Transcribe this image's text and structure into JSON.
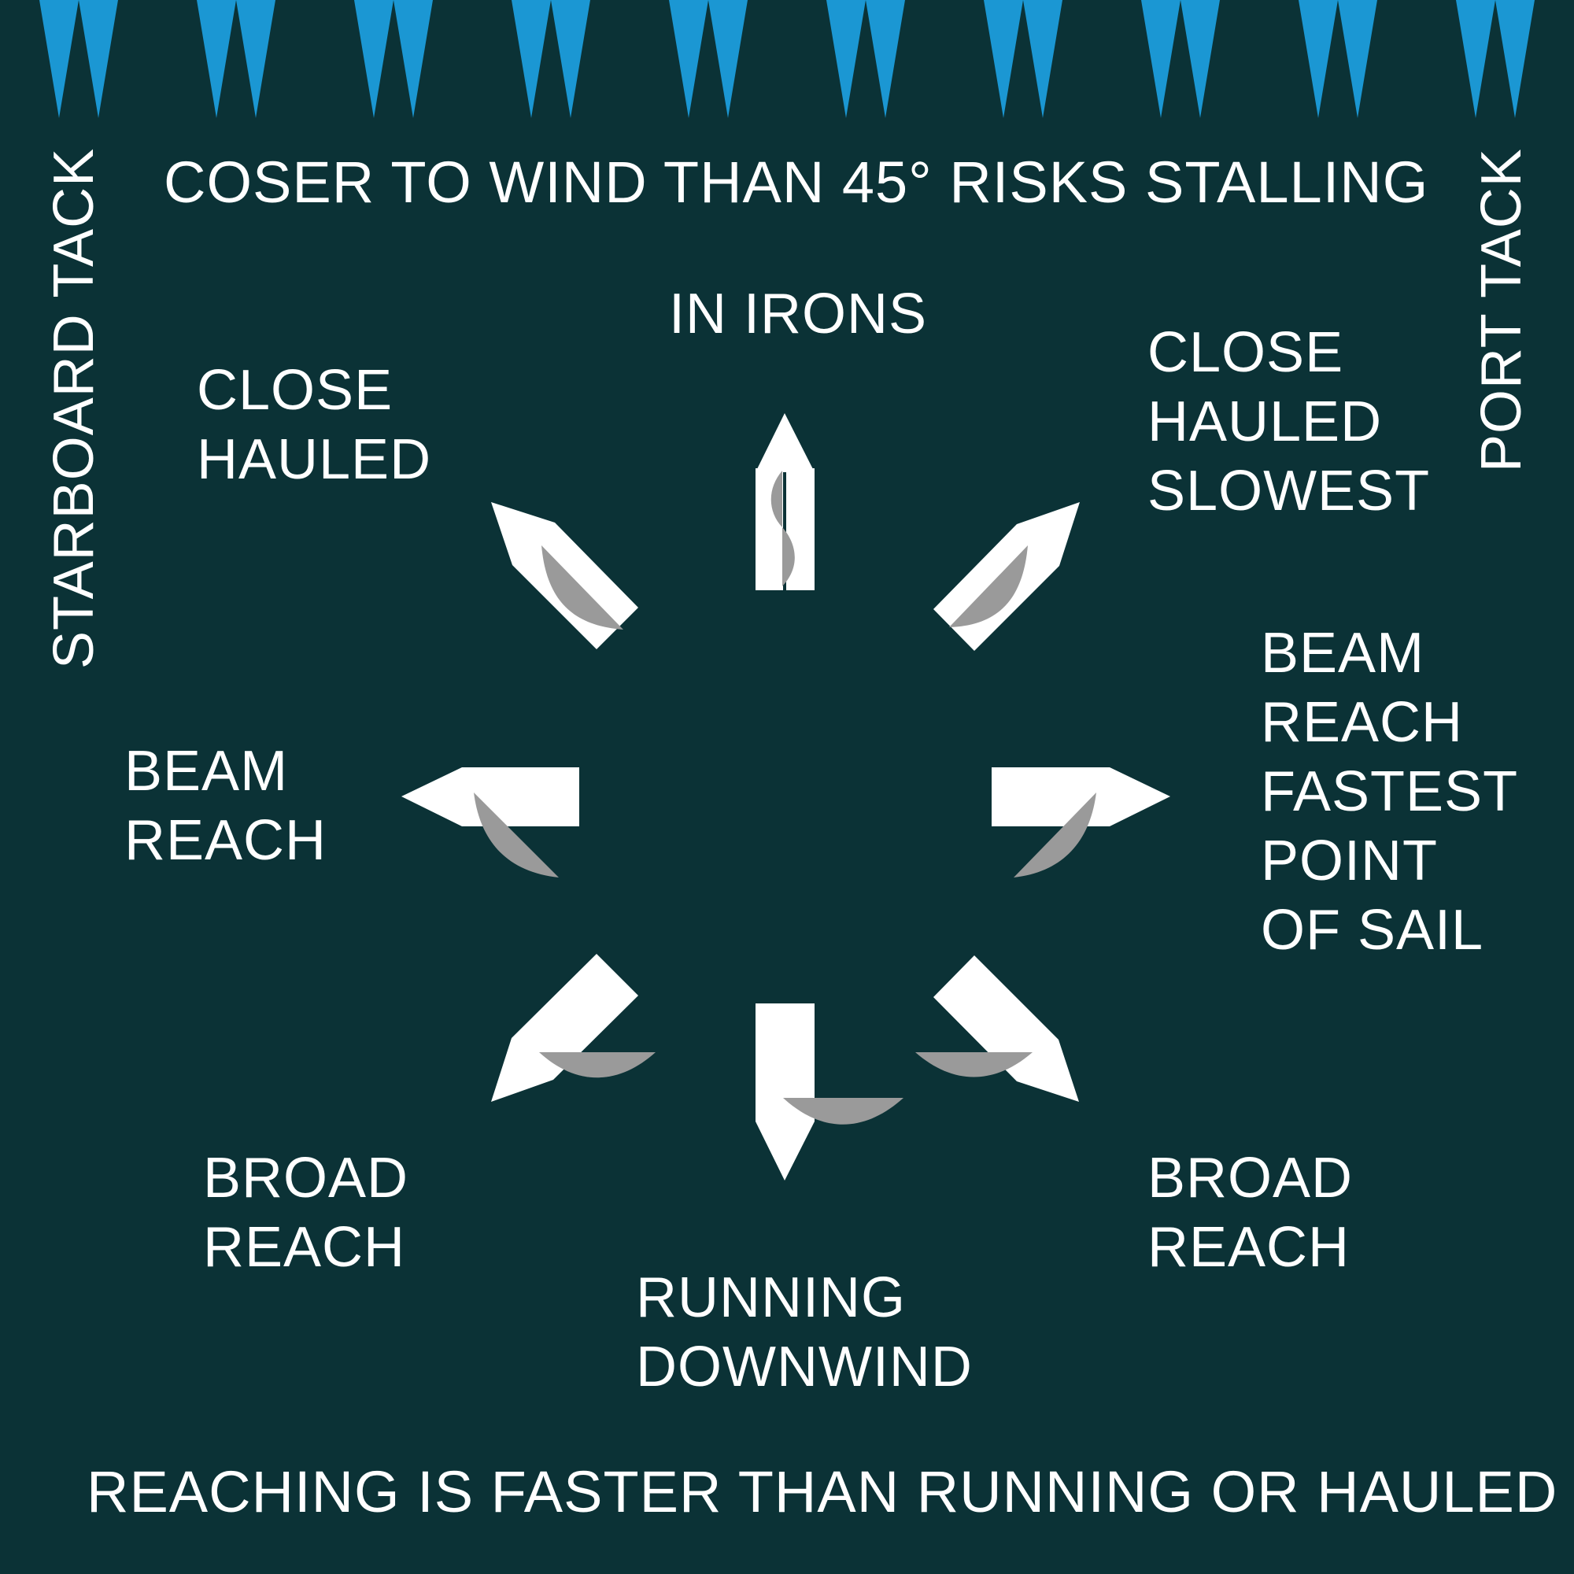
{
  "colors": {
    "background": "#0b3236",
    "wind_teeth": "#1b97d3",
    "boat_hull": "#ffffff",
    "sail": "#9a9a9a",
    "text": "#ffffff"
  },
  "header": {
    "warning": "COSER TO WIND THAN 45° RISKS STALLING"
  },
  "sides": {
    "left_tack": "STARBOARD TACK",
    "right_tack": "PORT TACK"
  },
  "points_of_sail": {
    "in_irons": "IN IRONS",
    "close_hauled_starboard": "CLOSE\nHAULED",
    "close_hauled_port": "CLOSE\nHAULED\nSLOWEST",
    "beam_reach_starboard": "BEAM\nREACH",
    "beam_reach_port": "BEAM\nREACH\nFASTEST\nPOINT\nOF SAIL",
    "broad_reach_starboard": "BROAD\nREACH",
    "broad_reach_port": "BROAD\nREACH",
    "running": "RUNNING\nDOWNWIND"
  },
  "footer": {
    "note": "REACHING IS FASTER THAN RUNNING OR HAULED"
  }
}
